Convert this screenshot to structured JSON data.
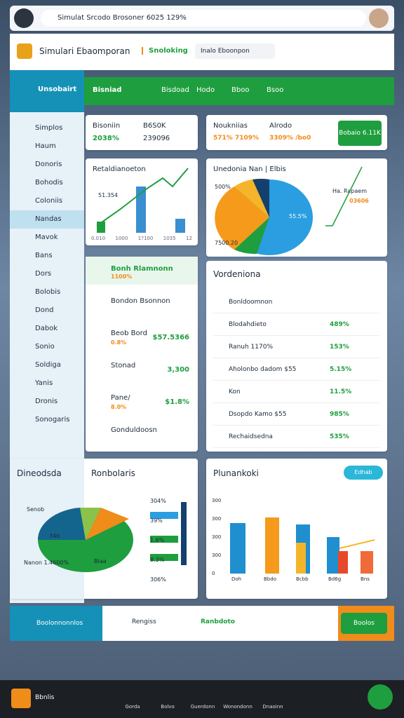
{
  "browser": {
    "address": "Simulat Srcodo Brosoner 6025 129%"
  },
  "header": {
    "brand": "Simulari Ebaomporan",
    "tab": "Snoloking",
    "search": "Inalo Eboonpon"
  },
  "sidebar": {
    "title": "Unsobairt",
    "items": [
      "Simplos",
      "Haum",
      "Donoris",
      "Bohodis",
      "Coloniis",
      "Nandas",
      "Mavok",
      "Bans",
      "Dors",
      "Bolobis",
      "Dond",
      "Dabok",
      "Sonio",
      "Soldiga",
      "Yanis",
      "Dronis",
      "Sonogaris"
    ]
  },
  "topbar": {
    "items": [
      "Bisniad",
      "Bisdoad",
      "Hodo",
      "Bboo",
      "Bsoo"
    ]
  },
  "stats": [
    {
      "label": "Bisoniin",
      "value": "2038%",
      "label2": "B6S0K",
      "value2": "239096"
    },
    {
      "label": "Noukniias",
      "value": "571% 7109%",
      "label2": "Alrodo",
      "value2": "3309% /bo0",
      "button": "Bobaio 6.11K"
    }
  ],
  "chart_left": {
    "title": "Retaldianoeton",
    "note": "51.354",
    "axis": [
      "0.010",
      "1000",
      "1?100",
      "1035",
      "12"
    ]
  },
  "chart_pie": {
    "title": "Unedonia Nan | Elbis",
    "top": "500%",
    "legend": "Ha. Rapaem",
    "legend_value": "03606",
    "slice": "55.5%",
    "bottom": "7500.20"
  },
  "list_left": {
    "header": "Bonh Rlamnonn",
    "header_value": "1100%",
    "rows": [
      {
        "name": "Bondon Bsonnon"
      },
      {
        "name": "Beob Bord",
        "sub": "0.8%",
        "value": "$57.5366"
      },
      {
        "name": "Stonad",
        "value": "3,300"
      },
      {
        "name": "Pane/",
        "sub": "8.0%",
        "value": "$1.8%"
      },
      {
        "name": "Gonduldoosn"
      }
    ]
  },
  "list_right": {
    "header": "Vordeniona",
    "rows": [
      {
        "name": "Bonldoomnon",
        "value": ""
      },
      {
        "name": "Blodahdieto",
        "value": "489%"
      },
      {
        "name": "Ranuh 1170%",
        "value": "153%"
      },
      {
        "name": "Aholonbo dadom $55",
        "value": "5.15%"
      },
      {
        "name": "Kon",
        "value": "11.5%"
      },
      {
        "name": "Dsopdo Kamo $55",
        "value": "985%"
      },
      {
        "name": "Rechaidsedna",
        "value": "535%"
      }
    ]
  },
  "bottom_left": {
    "title": "Dineodsda",
    "subtitle": "Ronbolaris",
    "labels": [
      "Senob",
      "34b",
      "Biaa",
      "Nanon 1.4600%"
    ],
    "bar_labels": [
      "304%",
      "39%",
      "1.6%",
      "8.3%",
      "306%"
    ]
  },
  "bottom_right": {
    "title": "Plunankoki",
    "badge": "Edhab",
    "axis": [
      "300",
      "300",
      "300",
      "300",
      "0"
    ],
    "categories": [
      "Doh",
      "Bbdo",
      "Bcbb",
      "Bd6g",
      "Bns"
    ]
  },
  "footer": {
    "items": [
      "Boolonnonnlos",
      "Rengiss",
      "Ranbdoto"
    ],
    "button": "Boolos"
  },
  "taskbar": {
    "start": "Bbnlis",
    "apps": [
      "Gorda",
      "Bolvo",
      "Guerdonn",
      "Wonondonn",
      "Dnaoinn"
    ]
  }
}
